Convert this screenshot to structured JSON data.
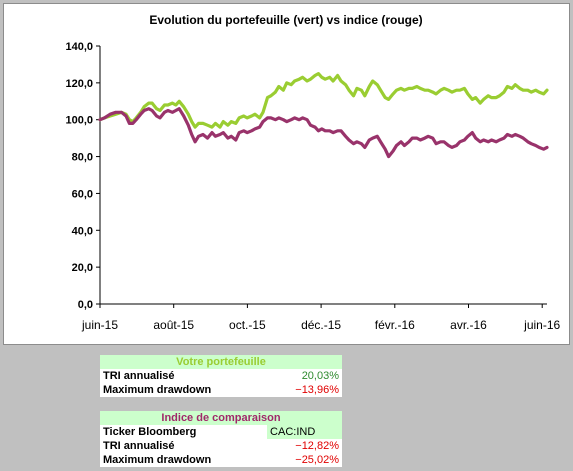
{
  "chart_data": {
    "type": "line",
    "title": "Evolution du portefeuille (vert) vs indice (rouge)",
    "xlabel": "",
    "ylabel": "",
    "x_tick_labels": [
      "juin-15",
      "août-15",
      "oct.-15",
      "déc.-15",
      "févr.-16",
      "avr.-16",
      "juin-16"
    ],
    "y_tick_labels": [
      "0,0",
      "20,0",
      "40,0",
      "60,0",
      "80,0",
      "100,0",
      "120,0",
      "140,0"
    ],
    "ylim": [
      0,
      140
    ],
    "x_range": [
      "2015-06-01",
      "2016-06-30"
    ],
    "grid": false,
    "legend": "none",
    "series": [
      {
        "color": "#9acd32",
        "points": [
          [
            "2015-06-01",
            100
          ],
          [
            "2015-06-05",
            101
          ],
          [
            "2015-06-10",
            102
          ],
          [
            "2015-06-15",
            103
          ],
          [
            "2015-06-20",
            104
          ],
          [
            "2015-06-24",
            103
          ],
          [
            "2015-06-27",
            100
          ],
          [
            "2015-06-30",
            99
          ],
          [
            "2015-07-03",
            101
          ],
          [
            "2015-07-07",
            104
          ],
          [
            "2015-07-10",
            107
          ],
          [
            "2015-07-14",
            109
          ],
          [
            "2015-07-17",
            109
          ],
          [
            "2015-07-21",
            106
          ],
          [
            "2015-07-24",
            105
          ],
          [
            "2015-07-28",
            108
          ],
          [
            "2015-07-31",
            108
          ],
          [
            "2015-08-04",
            109
          ],
          [
            "2015-08-07",
            108
          ],
          [
            "2015-08-10",
            110
          ],
          [
            "2015-08-14",
            107
          ],
          [
            "2015-08-18",
            103
          ],
          [
            "2015-08-21",
            99
          ],
          [
            "2015-08-24",
            96
          ],
          [
            "2015-08-27",
            98
          ],
          [
            "2015-08-31",
            98
          ],
          [
            "2015-09-04",
            97
          ],
          [
            "2015-09-08",
            96
          ],
          [
            "2015-09-11",
            98
          ],
          [
            "2015-09-15",
            96
          ],
          [
            "2015-09-18",
            99
          ],
          [
            "2015-09-22",
            97
          ],
          [
            "2015-09-25",
            99
          ],
          [
            "2015-09-29",
            98
          ],
          [
            "2015-10-02",
            101
          ],
          [
            "2015-10-06",
            102
          ],
          [
            "2015-10-09",
            101
          ],
          [
            "2015-10-13",
            102
          ],
          [
            "2015-10-16",
            103
          ],
          [
            "2015-10-20",
            101
          ],
          [
            "2015-10-23",
            104
          ],
          [
            "2015-10-27",
            112
          ],
          [
            "2015-10-30",
            113
          ],
          [
            "2015-11-03",
            115
          ],
          [
            "2015-11-06",
            118
          ],
          [
            "2015-11-10",
            116
          ],
          [
            "2015-11-13",
            120
          ],
          [
            "2015-11-17",
            119
          ],
          [
            "2015-11-20",
            121
          ],
          [
            "2015-11-24",
            122
          ],
          [
            "2015-11-27",
            123
          ],
          [
            "2015-12-01",
            121
          ],
          [
            "2015-12-04",
            122
          ],
          [
            "2015-12-08",
            124
          ],
          [
            "2015-12-11",
            125
          ],
          [
            "2015-12-14",
            123
          ],
          [
            "2015-12-17",
            122
          ],
          [
            "2015-12-21",
            123
          ],
          [
            "2015-12-24",
            121
          ],
          [
            "2015-12-28",
            124
          ],
          [
            "2015-12-31",
            121
          ],
          [
            "2016-01-04",
            119
          ],
          [
            "2016-01-07",
            116
          ],
          [
            "2016-01-11",
            113
          ],
          [
            "2016-01-14",
            117
          ],
          [
            "2016-01-18",
            116
          ],
          [
            "2016-01-21",
            113
          ],
          [
            "2016-01-25",
            118
          ],
          [
            "2016-01-28",
            121
          ],
          [
            "2016-02-01",
            119
          ],
          [
            "2016-02-04",
            116
          ],
          [
            "2016-02-08",
            112
          ],
          [
            "2016-02-11",
            111
          ],
          [
            "2016-02-15",
            114
          ],
          [
            "2016-02-18",
            116
          ],
          [
            "2016-02-22",
            117
          ],
          [
            "2016-02-25",
            116
          ],
          [
            "2016-02-29",
            117
          ],
          [
            "2016-03-03",
            117
          ],
          [
            "2016-03-07",
            118
          ],
          [
            "2016-03-10",
            117
          ],
          [
            "2016-03-14",
            116
          ],
          [
            "2016-03-17",
            116
          ],
          [
            "2016-03-21",
            115
          ],
          [
            "2016-03-24",
            114
          ],
          [
            "2016-03-28",
            116
          ],
          [
            "2016-03-31",
            117
          ],
          [
            "2016-04-04",
            116
          ],
          [
            "2016-04-07",
            115
          ],
          [
            "2016-04-11",
            116
          ],
          [
            "2016-04-14",
            116
          ],
          [
            "2016-04-18",
            117
          ],
          [
            "2016-04-21",
            114
          ],
          [
            "2016-04-25",
            111
          ],
          [
            "2016-04-28",
            112
          ],
          [
            "2016-05-02",
            109
          ],
          [
            "2016-05-05",
            111
          ],
          [
            "2016-05-09",
            113
          ],
          [
            "2016-05-12",
            112
          ],
          [
            "2016-05-16",
            112
          ],
          [
            "2016-05-19",
            113
          ],
          [
            "2016-05-23",
            115
          ],
          [
            "2016-05-26",
            118
          ],
          [
            "2016-05-30",
            117
          ],
          [
            "2016-06-02",
            119
          ],
          [
            "2016-06-06",
            117
          ],
          [
            "2016-06-09",
            116
          ],
          [
            "2016-06-13",
            116
          ],
          [
            "2016-06-16",
            115
          ],
          [
            "2016-06-20",
            116
          ],
          [
            "2016-06-23",
            115
          ],
          [
            "2016-06-27",
            114
          ],
          [
            "2016-06-30",
            116
          ]
        ]
      },
      {
        "color": "#99336b",
        "points": [
          [
            "2015-06-01",
            100
          ],
          [
            "2015-06-05",
            101
          ],
          [
            "2015-06-10",
            103
          ],
          [
            "2015-06-15",
            104
          ],
          [
            "2015-06-20",
            104
          ],
          [
            "2015-06-24",
            102
          ],
          [
            "2015-06-27",
            98
          ],
          [
            "2015-06-30",
            98
          ],
          [
            "2015-07-03",
            100
          ],
          [
            "2015-07-07",
            103
          ],
          [
            "2015-07-10",
            105
          ],
          [
            "2015-07-14",
            106
          ],
          [
            "2015-07-17",
            105
          ],
          [
            "2015-07-21",
            102
          ],
          [
            "2015-07-24",
            101
          ],
          [
            "2015-07-28",
            104
          ],
          [
            "2015-07-31",
            105
          ],
          [
            "2015-08-04",
            104
          ],
          [
            "2015-08-07",
            105
          ],
          [
            "2015-08-10",
            106
          ],
          [
            "2015-08-14",
            102
          ],
          [
            "2015-08-18",
            97
          ],
          [
            "2015-08-21",
            92
          ],
          [
            "2015-08-24",
            88
          ],
          [
            "2015-08-27",
            91
          ],
          [
            "2015-08-31",
            92
          ],
          [
            "2015-09-04",
            90
          ],
          [
            "2015-09-08",
            93
          ],
          [
            "2015-09-11",
            91
          ],
          [
            "2015-09-15",
            92
          ],
          [
            "2015-09-18",
            93
          ],
          [
            "2015-09-22",
            90
          ],
          [
            "2015-09-25",
            91
          ],
          [
            "2015-09-29",
            89
          ],
          [
            "2015-10-02",
            93
          ],
          [
            "2015-10-06",
            94
          ],
          [
            "2015-10-09",
            93
          ],
          [
            "2015-10-13",
            94
          ],
          [
            "2015-10-16",
            95
          ],
          [
            "2015-10-20",
            96
          ],
          [
            "2015-10-23",
            99
          ],
          [
            "2015-10-27",
            101
          ],
          [
            "2015-10-30",
            101
          ],
          [
            "2015-11-03",
            100
          ],
          [
            "2015-11-06",
            101
          ],
          [
            "2015-11-10",
            100
          ],
          [
            "2015-11-13",
            99
          ],
          [
            "2015-11-17",
            100
          ],
          [
            "2015-11-20",
            101
          ],
          [
            "2015-11-24",
            100
          ],
          [
            "2015-11-27",
            101
          ],
          [
            "2015-12-01",
            100
          ],
          [
            "2015-12-04",
            97
          ],
          [
            "2015-12-08",
            96
          ],
          [
            "2015-12-11",
            94
          ],
          [
            "2015-12-14",
            95
          ],
          [
            "2015-12-17",
            94
          ],
          [
            "2015-12-21",
            94
          ],
          [
            "2015-12-24",
            93
          ],
          [
            "2015-12-28",
            94
          ],
          [
            "2015-12-31",
            94
          ],
          [
            "2016-01-04",
            91
          ],
          [
            "2016-01-07",
            89
          ],
          [
            "2016-01-11",
            87
          ],
          [
            "2016-01-14",
            88
          ],
          [
            "2016-01-18",
            87
          ],
          [
            "2016-01-21",
            85
          ],
          [
            "2016-01-25",
            89
          ],
          [
            "2016-01-28",
            90
          ],
          [
            "2016-02-01",
            91
          ],
          [
            "2016-02-04",
            88
          ],
          [
            "2016-02-08",
            84
          ],
          [
            "2016-02-11",
            80
          ],
          [
            "2016-02-15",
            83
          ],
          [
            "2016-02-18",
            86
          ],
          [
            "2016-02-22",
            88
          ],
          [
            "2016-02-25",
            86
          ],
          [
            "2016-02-29",
            88
          ],
          [
            "2016-03-03",
            90
          ],
          [
            "2016-03-07",
            90
          ],
          [
            "2016-03-10",
            89
          ],
          [
            "2016-03-14",
            90
          ],
          [
            "2016-03-17",
            91
          ],
          [
            "2016-03-21",
            90
          ],
          [
            "2016-03-24",
            87
          ],
          [
            "2016-03-28",
            88
          ],
          [
            "2016-03-31",
            88
          ],
          [
            "2016-04-04",
            86
          ],
          [
            "2016-04-07",
            85
          ],
          [
            "2016-04-11",
            86
          ],
          [
            "2016-04-14",
            88
          ],
          [
            "2016-04-18",
            89
          ],
          [
            "2016-04-21",
            91
          ],
          [
            "2016-04-25",
            93
          ],
          [
            "2016-04-28",
            90
          ],
          [
            "2016-05-02",
            88
          ],
          [
            "2016-05-05",
            89
          ],
          [
            "2016-05-09",
            88
          ],
          [
            "2016-05-12",
            89
          ],
          [
            "2016-05-16",
            88
          ],
          [
            "2016-05-19",
            89
          ],
          [
            "2016-05-23",
            90
          ],
          [
            "2016-05-26",
            92
          ],
          [
            "2016-05-30",
            91
          ],
          [
            "2016-06-02",
            92
          ],
          [
            "2016-06-06",
            91
          ],
          [
            "2016-06-09",
            90
          ],
          [
            "2016-06-13",
            88
          ],
          [
            "2016-06-16",
            87
          ],
          [
            "2016-06-20",
            86
          ],
          [
            "2016-06-23",
            85
          ],
          [
            "2016-06-27",
            84
          ],
          [
            "2016-06-30",
            85
          ]
        ]
      }
    ]
  },
  "portfolio": {
    "header": "Votre portefeuille",
    "rows": [
      {
        "label": "TRI annualisé",
        "value": "20,03%"
      },
      {
        "label": "Maximum drawdown",
        "value": "−13,96%"
      }
    ]
  },
  "index": {
    "header": "Indice de comparaison",
    "ticker_label": "Ticker Bloomberg",
    "ticker_value": "CAC:IND",
    "rows": [
      {
        "label": "TRI annualisé",
        "value": "−12,82%"
      },
      {
        "label": "Maximum drawdown",
        "value": "−25,02%"
      }
    ]
  }
}
